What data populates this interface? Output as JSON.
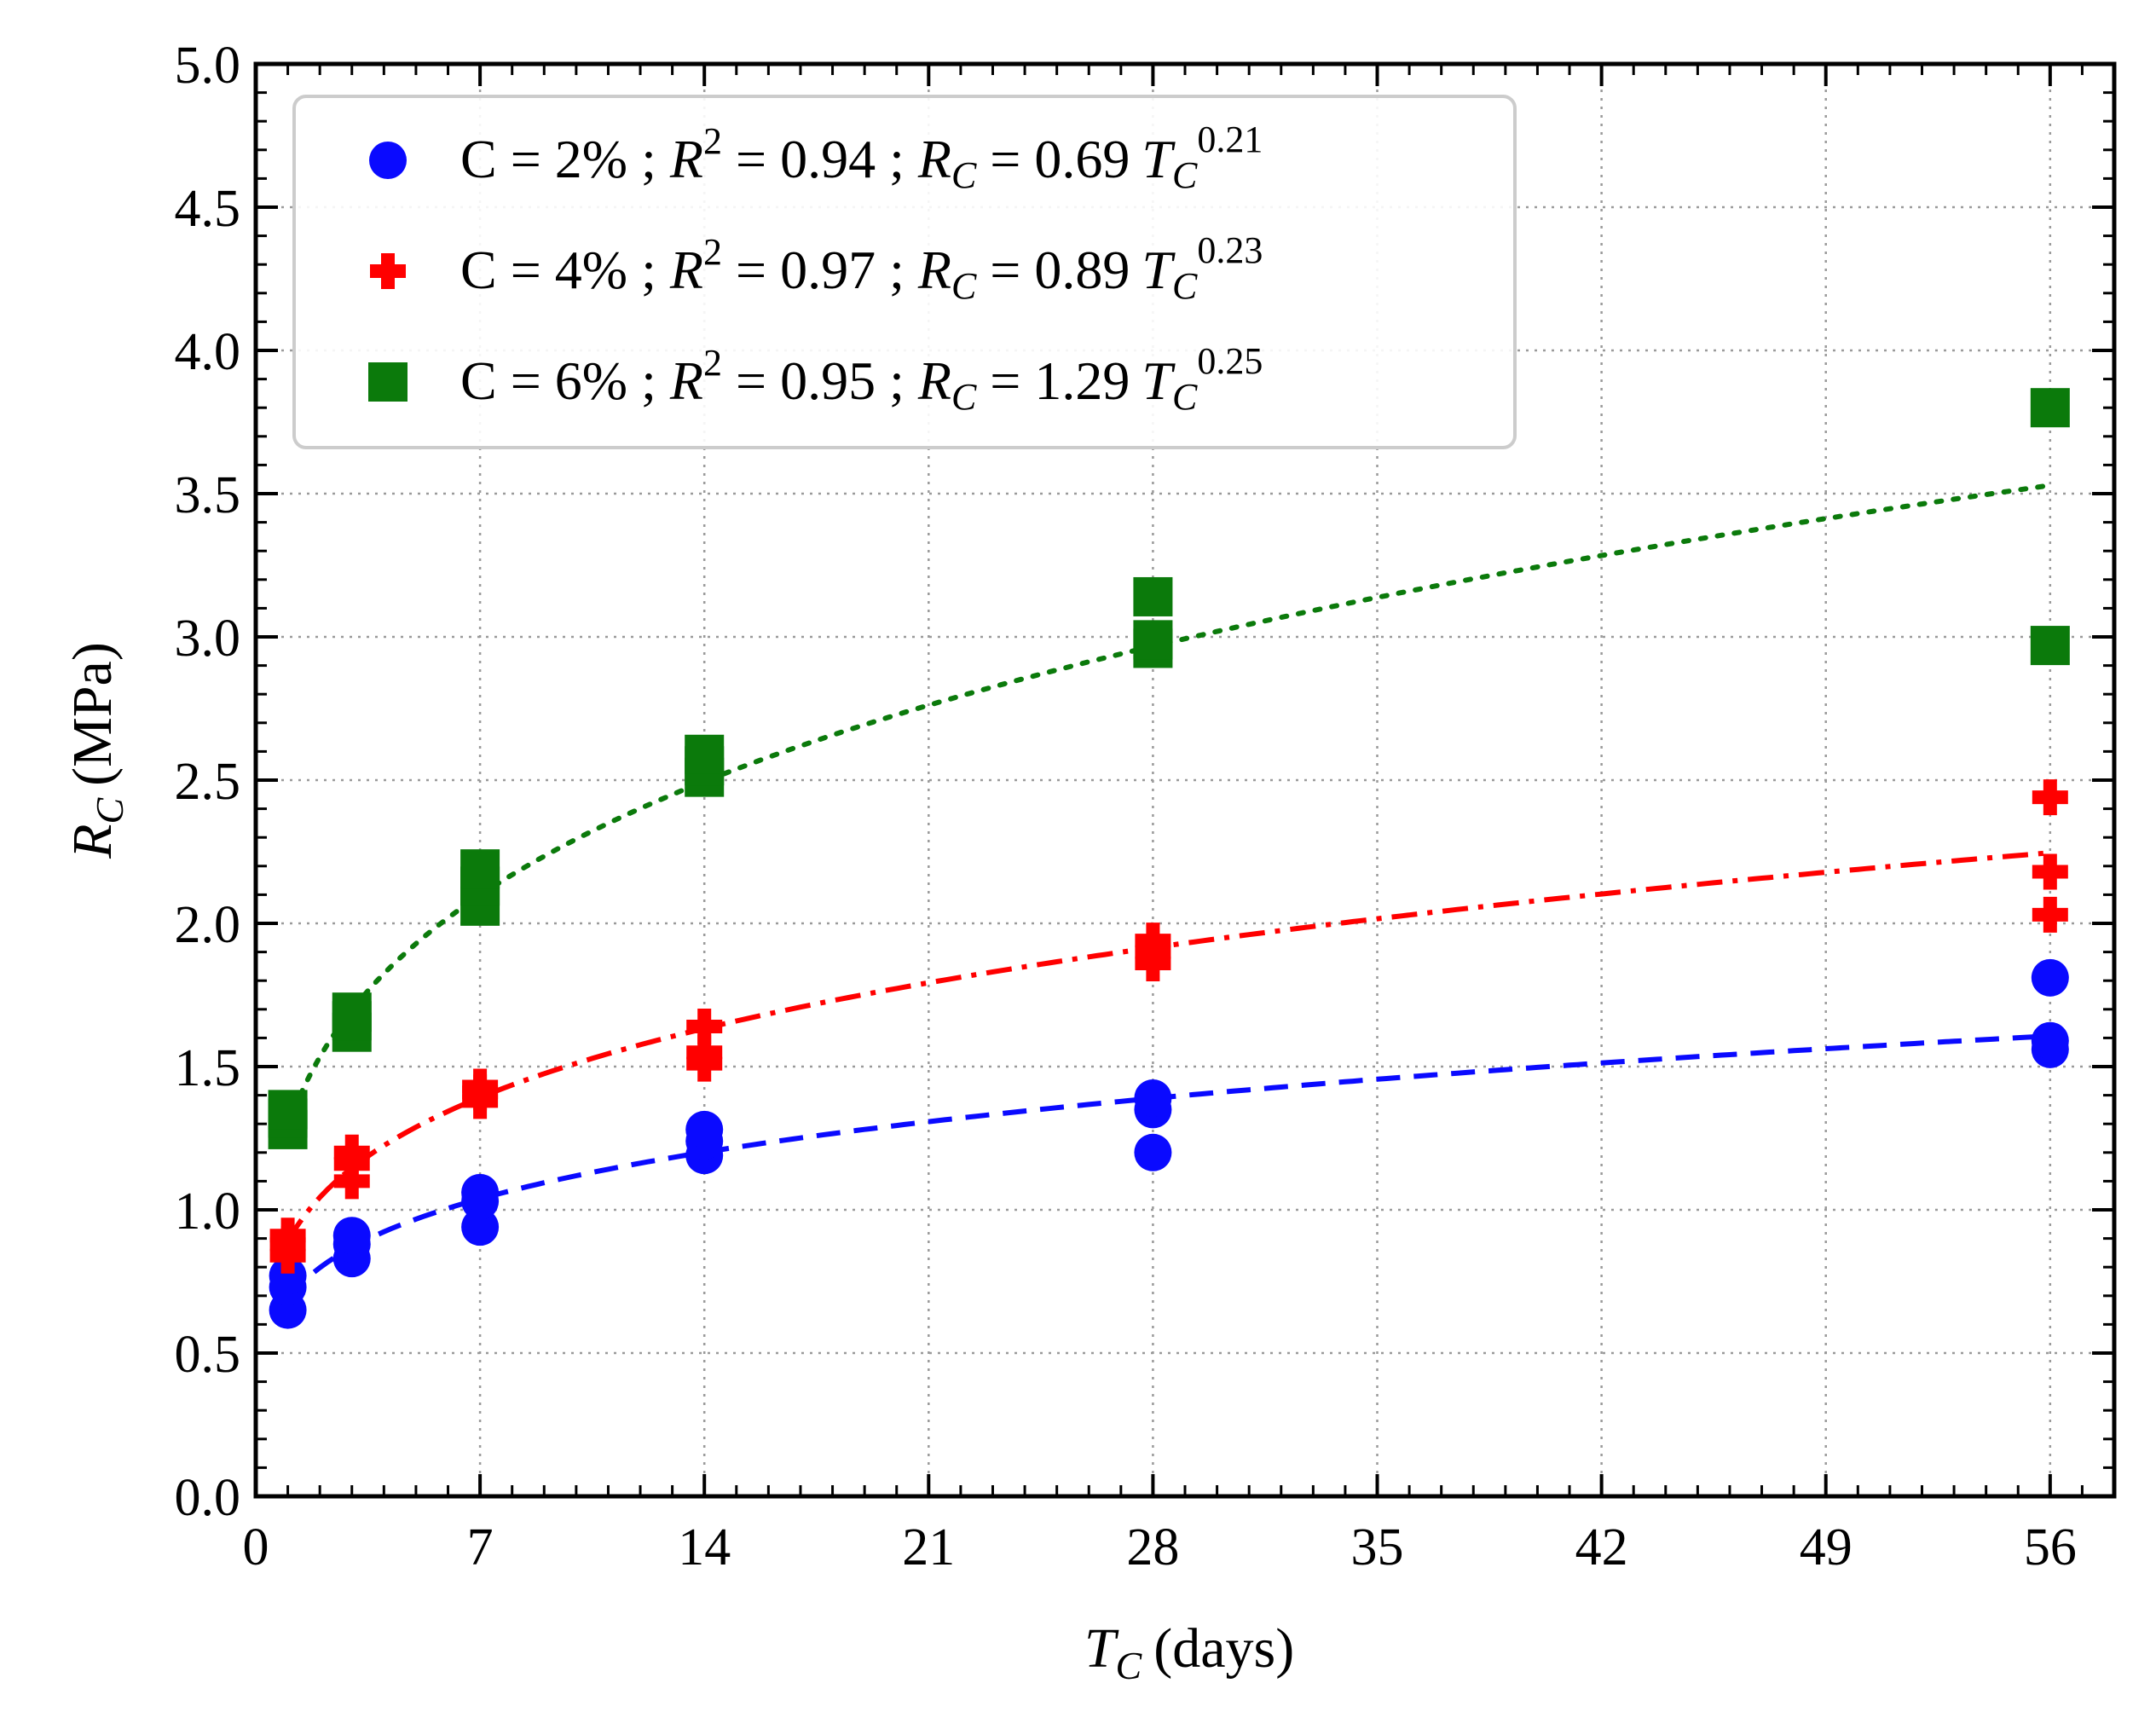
{
  "chart_data": {
    "type": "scatter",
    "xlabel": {
      "symbol": "T",
      "subscript": "C",
      "unit": "(days)"
    },
    "ylabel": {
      "symbol": "R",
      "subscript": "C",
      "unit": "(MPa)"
    },
    "xlim": [
      0,
      58
    ],
    "ylim": [
      0,
      5.0
    ],
    "xticks": [
      0,
      7,
      14,
      21,
      28,
      35,
      42,
      49,
      56
    ],
    "xtick_labels": [
      "0",
      "7",
      "14",
      "21",
      "28",
      "35",
      "42",
      "49",
      "56"
    ],
    "yticks": [
      0,
      0.5,
      1.0,
      1.5,
      2.0,
      2.5,
      3.0,
      3.5,
      4.0,
      4.5,
      5.0
    ],
    "ytick_labels": [
      "0.0",
      "0.5",
      "1.0",
      "1.5",
      "2.0",
      "2.5",
      "3.0",
      "3.5",
      "4.0",
      "4.5",
      "5.0"
    ],
    "grid": true,
    "legend_position": "top-left",
    "series": [
      {
        "name": "C = 2%",
        "legend": {
          "prefix": "C = 2% ; ",
          "r2": "0.94",
          "coef": "0.69",
          "exp": "0.21"
        },
        "marker": "circle",
        "color": "#0a0aff",
        "fit_line": "dashed",
        "fit_coef": 0.69,
        "fit_exp": 0.21,
        "points": [
          [
            1,
            0.65
          ],
          [
            1,
            0.73
          ],
          [
            1,
            0.77
          ],
          [
            3,
            0.83
          ],
          [
            3,
            0.88
          ],
          [
            3,
            0.91
          ],
          [
            7,
            0.94
          ],
          [
            7,
            1.03
          ],
          [
            7,
            1.06
          ],
          [
            14,
            1.19
          ],
          [
            14,
            1.24
          ],
          [
            14,
            1.28
          ],
          [
            28,
            1.2
          ],
          [
            28,
            1.35
          ],
          [
            28,
            1.39
          ],
          [
            56,
            1.56
          ],
          [
            56,
            1.59
          ],
          [
            56,
            1.81
          ]
        ]
      },
      {
        "name": "C = 4%",
        "legend": {
          "prefix": "C = 4% ; ",
          "r2": "0.97",
          "coef": "0.89",
          "exp": "0.23"
        },
        "marker": "plus",
        "color": "#ff0000",
        "fit_line": "dashdot",
        "fit_coef": 0.89,
        "fit_exp": 0.23,
        "points": [
          [
            1,
            0.84
          ],
          [
            1,
            0.88
          ],
          [
            1,
            0.91
          ],
          [
            3,
            1.1
          ],
          [
            3,
            1.16
          ],
          [
            3,
            1.2
          ],
          [
            7,
            1.38
          ],
          [
            7,
            1.41
          ],
          [
            7,
            1.43
          ],
          [
            14,
            1.51
          ],
          [
            14,
            1.55
          ],
          [
            14,
            1.64
          ],
          [
            28,
            1.86
          ],
          [
            28,
            1.9
          ],
          [
            28,
            1.94
          ],
          [
            56,
            2.03
          ],
          [
            56,
            2.18
          ],
          [
            56,
            2.44
          ]
        ]
      },
      {
        "name": "C = 6%",
        "legend": {
          "prefix": "C = 6% ; ",
          "r2": "0.95",
          "coef": "1.29",
          "exp": "0.25"
        },
        "marker": "square",
        "color": "#0b7a0b",
        "fit_line": "dotted",
        "fit_coef": 1.29,
        "fit_exp": 0.25,
        "points": [
          [
            1,
            1.28
          ],
          [
            1,
            1.32
          ],
          [
            1,
            1.35
          ],
          [
            3,
            1.62
          ],
          [
            3,
            1.66
          ],
          [
            3,
            1.69
          ],
          [
            7,
            2.06
          ],
          [
            7,
            2.13
          ],
          [
            7,
            2.19
          ],
          [
            14,
            2.51
          ],
          [
            14,
            2.55
          ],
          [
            14,
            2.59
          ],
          [
            28,
            2.96
          ],
          [
            28,
            2.99
          ],
          [
            28,
            3.14
          ],
          [
            56,
            2.97
          ],
          [
            56,
            3.8
          ]
        ]
      }
    ]
  }
}
